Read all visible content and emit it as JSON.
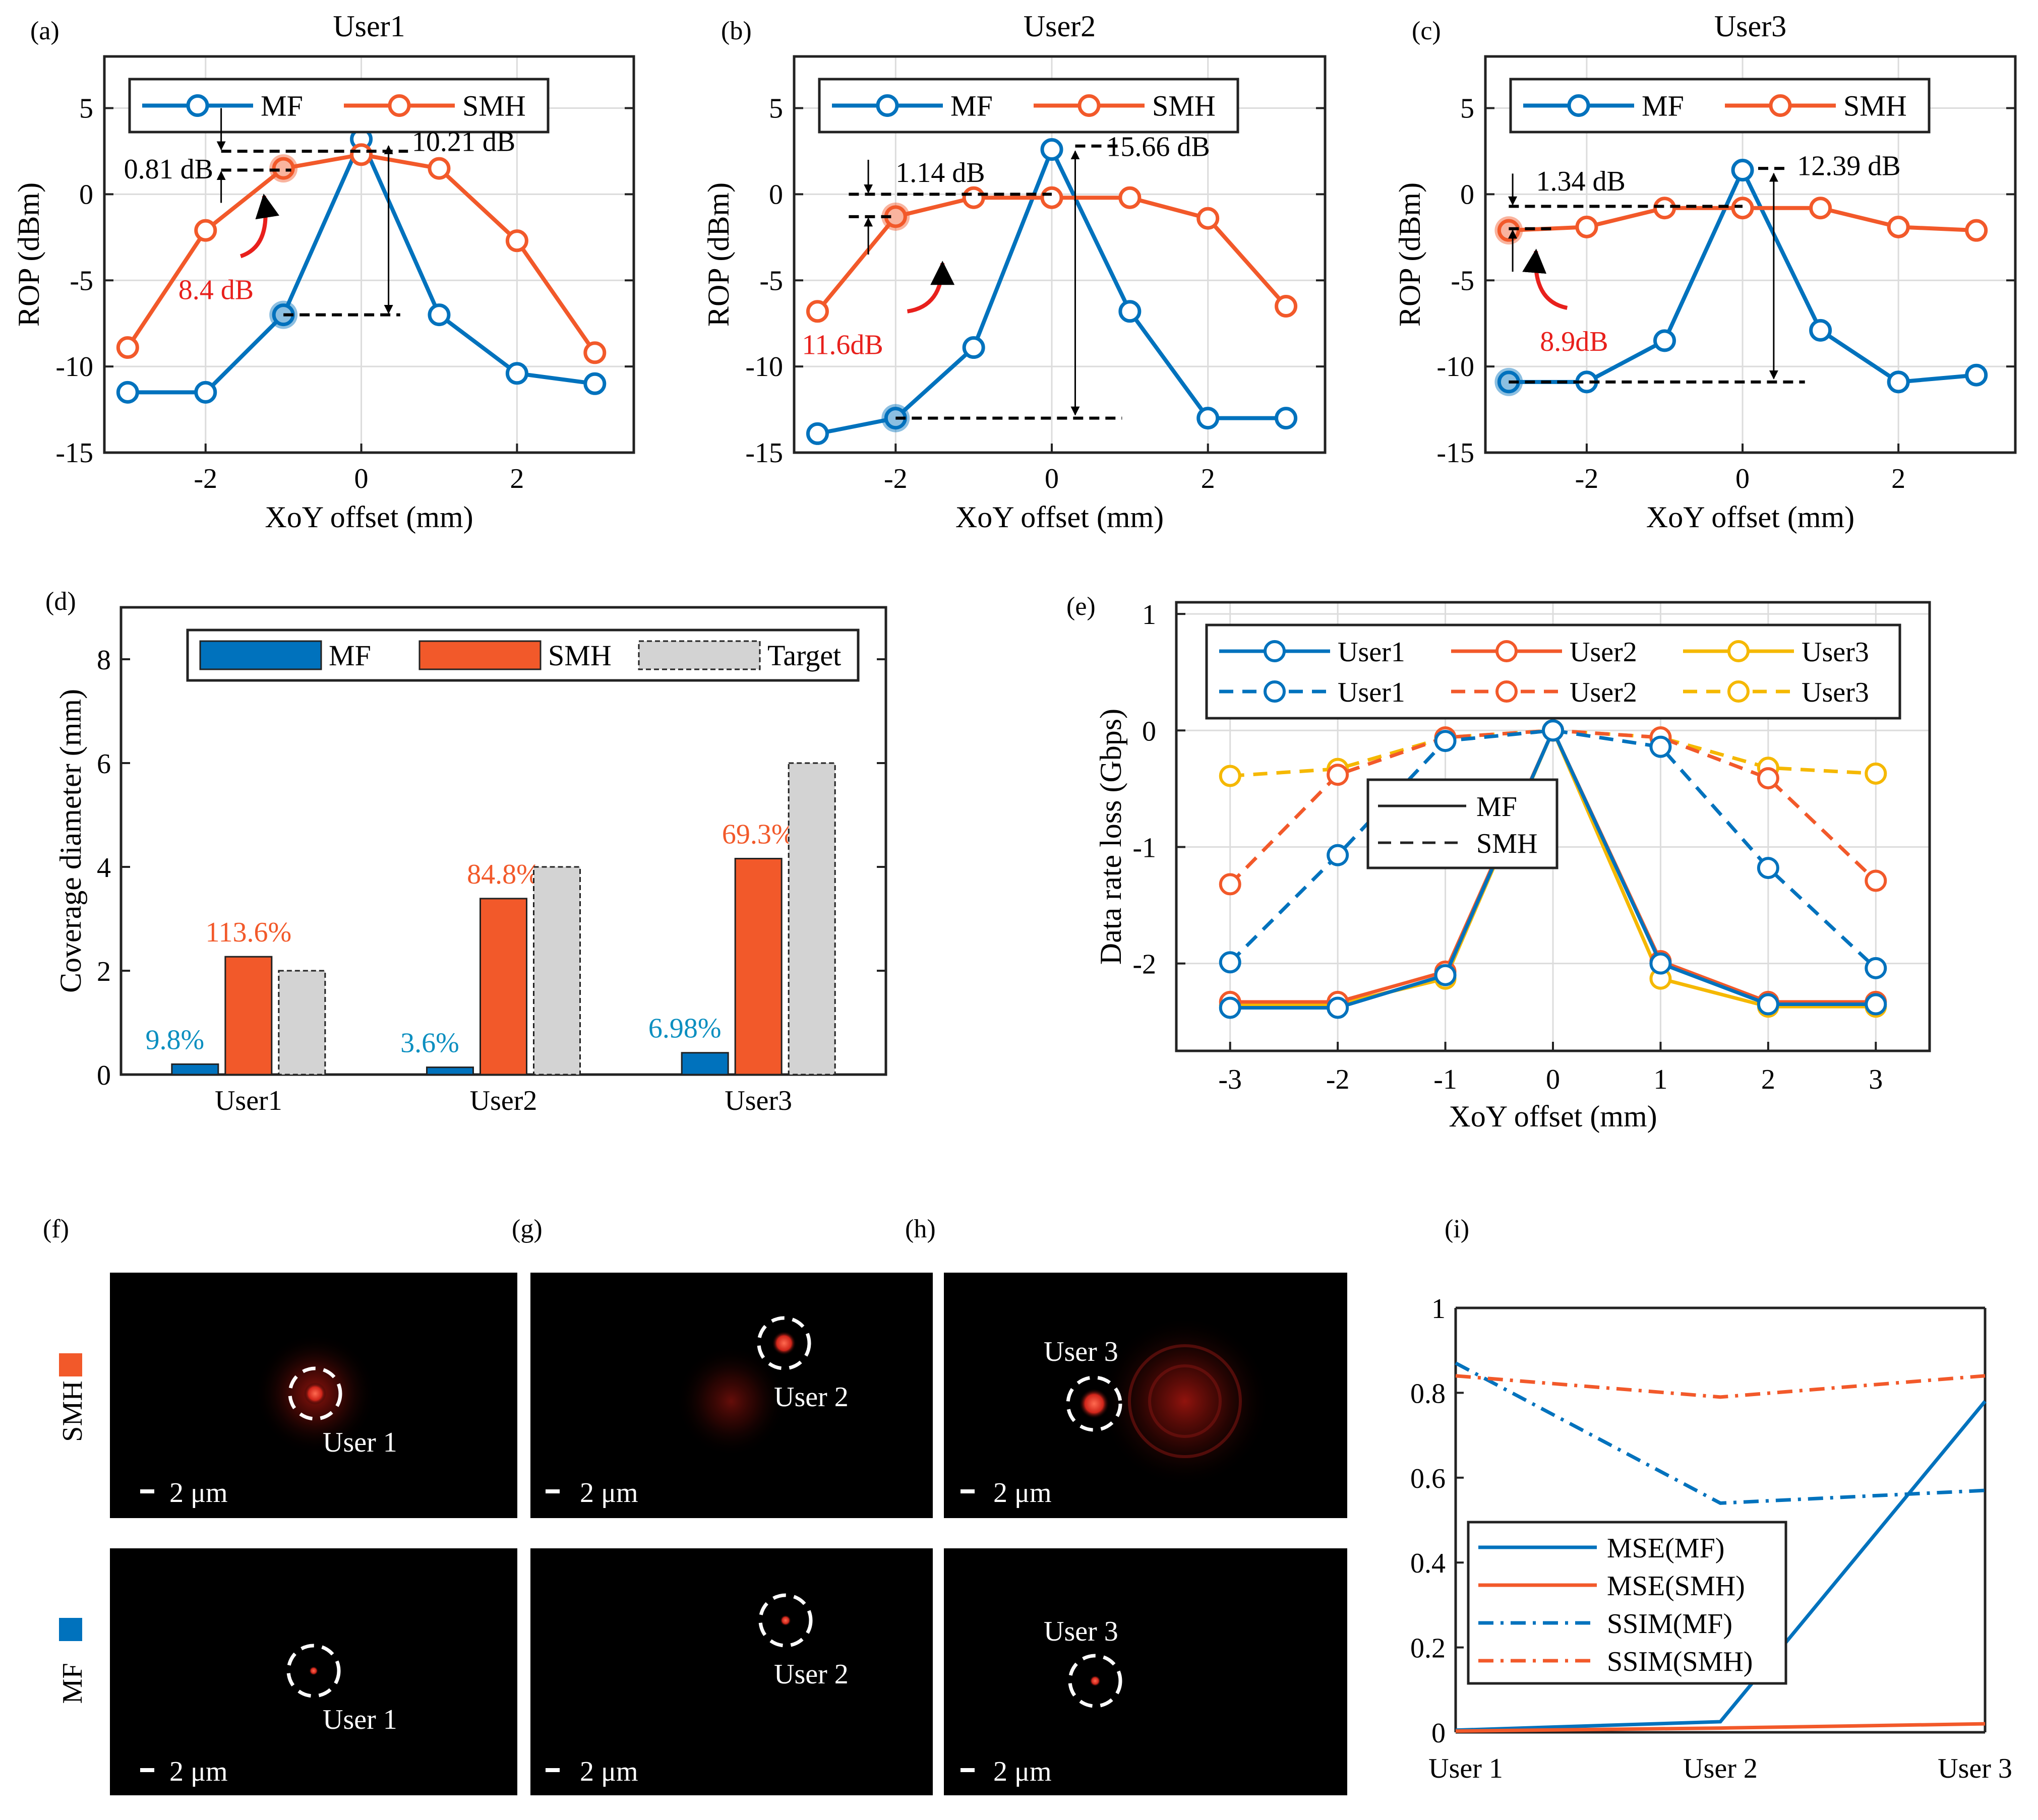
{
  "colors": {
    "mf": "#0072BD",
    "smh": "#F2592A",
    "user3": "#F5B800",
    "target": "#D3D3D3",
    "highlight_red": "#E8201C",
    "mf_pct": "#0B8FC0",
    "smh_pct": "#F2592A"
  },
  "chart_data": [
    {
      "panel": "(a)",
      "type": "line",
      "title": "User1",
      "xlabel": "XoY offset (mm)",
      "ylabel": "ROP (dBm)",
      "xlim": [
        -3.3,
        3.5
      ],
      "ylim": [
        -15,
        8
      ],
      "xticks": [
        -2,
        0,
        2
      ],
      "yticks": [
        -15,
        -10,
        -5,
        0,
        5
      ],
      "ytick_labels": [
        "-15",
        "-10",
        "-5",
        "0",
        "5"
      ],
      "legend": [
        "MF",
        "SMH"
      ],
      "x": [
        -3,
        -2,
        -1,
        0,
        1,
        2,
        3
      ],
      "series": [
        {
          "name": "MF",
          "values": [
            -11.5,
            -11.5,
            -7.0,
            3.2,
            -7.0,
            -10.4,
            -11.0
          ]
        },
        {
          "name": "SMH",
          "values": [
            -8.9,
            -2.1,
            1.5,
            2.3,
            1.5,
            -2.7,
            -9.2
          ]
        }
      ],
      "annotations": [
        {
          "text": "0.81 dB"
        },
        {
          "text": "10.21 dB"
        },
        {
          "text": "8.4 dB"
        }
      ]
    },
    {
      "panel": "(b)",
      "type": "line",
      "title": "User2",
      "xlabel": "XoY offset (mm)",
      "ylabel": "ROP (dBm)",
      "xlim": [
        -3.3,
        3.5
      ],
      "ylim": [
        -15,
        8
      ],
      "xticks": [
        -2,
        0,
        2
      ],
      "yticks": [
        -15,
        -10,
        -5,
        0,
        5
      ],
      "ytick_labels": [
        "-15",
        "-10",
        "-5",
        "0",
        "5"
      ],
      "legend": [
        "MF",
        "SMH"
      ],
      "x": [
        -3,
        -2,
        -1,
        0,
        1,
        2,
        3
      ],
      "series": [
        {
          "name": "MF",
          "values": [
            -13.9,
            -13.0,
            -8.9,
            2.6,
            -6.8,
            -13.0,
            -13.0
          ]
        },
        {
          "name": "SMH",
          "values": [
            -6.8,
            -1.3,
            -0.2,
            -0.2,
            -0.2,
            -1.4,
            -6.5
          ]
        }
      ],
      "annotations": [
        {
          "text": "1.14 dB"
        },
        {
          "text": "15.66 dB"
        },
        {
          "text": "11.6dB"
        }
      ]
    },
    {
      "panel": "(c)",
      "type": "line",
      "title": "User3",
      "xlabel": "XoY offset (mm)",
      "ylabel": "ROP (dBm)",
      "xlim": [
        -3.3,
        3.5
      ],
      "ylim": [
        -15,
        8
      ],
      "xticks": [
        -2,
        0,
        2
      ],
      "yticks": [
        -15,
        -10,
        -5,
        0,
        5
      ],
      "ytick_labels": [
        "-15",
        "-10",
        "-5",
        "0",
        "5"
      ],
      "legend": [
        "MF",
        "SMH"
      ],
      "x": [
        -3,
        -2,
        -1,
        0,
        1,
        2,
        3
      ],
      "series": [
        {
          "name": "MF",
          "values": [
            -10.9,
            -10.9,
            -8.5,
            1.4,
            -7.9,
            -10.9,
            -10.5
          ]
        },
        {
          "name": "SMH",
          "values": [
            -2.1,
            -1.9,
            -0.8,
            -0.8,
            -0.8,
            -1.9,
            -2.1
          ]
        }
      ],
      "annotations": [
        {
          "text": "1.34 dB"
        },
        {
          "text": "12.39 dB"
        },
        {
          "text": "8.9dB"
        }
      ]
    },
    {
      "panel": "(d)",
      "type": "bar",
      "title": "",
      "xlabel": "",
      "ylabel": "Coverage diameter (mm)",
      "ylim": [
        0,
        9
      ],
      "yticks": [
        0,
        2,
        4,
        6,
        8
      ],
      "ytick_labels": [
        "0",
        "2",
        "4",
        "6",
        "8"
      ],
      "categories": [
        "User1",
        "User2",
        "User3"
      ],
      "legend": [
        "MF",
        "SMH",
        "Target"
      ],
      "series": [
        {
          "name": "MF",
          "values": [
            0.2,
            0.14,
            0.42
          ],
          "labels": [
            "9.8%",
            "3.6%",
            "6.98%"
          ]
        },
        {
          "name": "SMH",
          "values": [
            2.27,
            3.39,
            4.16
          ],
          "labels": [
            "113.6%",
            "84.8%",
            "69.3%"
          ]
        },
        {
          "name": "Target",
          "values": [
            2.0,
            4.0,
            6.0
          ]
        }
      ]
    },
    {
      "panel": "(e)",
      "type": "line",
      "title": "",
      "xlabel": "XoY offset (mm)",
      "ylabel": "Data rate loss (Gbps)",
      "xlim": [
        -3.5,
        3.5
      ],
      "ylim": [
        -2.75,
        1.1
      ],
      "xticks": [
        -3,
        -2,
        -1,
        0,
        1,
        2,
        3
      ],
      "xtick_labels": [
        "-3",
        "-2",
        "-1",
        "0",
        "1",
        "2",
        "3"
      ],
      "yticks": [
        -2,
        -1,
        0,
        1
      ],
      "ytick_labels": [
        "-2",
        "-1",
        "0",
        "1"
      ],
      "x": [
        -3,
        -2,
        -1,
        0,
        1,
        2,
        3
      ],
      "legend_main": [
        [
          "User1",
          "User2",
          "User3"
        ],
        [
          "User1",
          "User2",
          "User3"
        ]
      ],
      "legend_style": [
        "MF",
        "SMH"
      ],
      "series": [
        {
          "name": "User1",
          "style": "MF",
          "values": [
            -2.38,
            -2.38,
            -2.1,
            0.0,
            -2.0,
            -2.35,
            -2.35
          ]
        },
        {
          "name": "User2",
          "style": "MF",
          "values": [
            -2.33,
            -2.33,
            -2.07,
            0.0,
            -1.98,
            -2.33,
            -2.33
          ]
        },
        {
          "name": "User3",
          "style": "MF",
          "values": [
            -2.36,
            -2.35,
            -2.13,
            0.0,
            -2.13,
            -2.37,
            -2.37
          ]
        },
        {
          "name": "User1",
          "style": "SMH",
          "values": [
            -1.99,
            -1.07,
            -0.09,
            0.0,
            -0.14,
            -1.18,
            -2.04
          ]
        },
        {
          "name": "User2",
          "style": "SMH",
          "values": [
            -1.32,
            -0.38,
            -0.06,
            0.0,
            -0.06,
            -0.41,
            -1.29
          ]
        },
        {
          "name": "User3",
          "style": "SMH",
          "values": [
            -0.39,
            -0.33,
            -0.06,
            0.0,
            -0.06,
            -0.32,
            -0.37
          ]
        }
      ]
    },
    {
      "panel": "(i)",
      "type": "line",
      "title": "",
      "xlabel": "",
      "ylabel": "",
      "ylim": [
        0,
        1
      ],
      "yticks": [
        0,
        0.2,
        0.4,
        0.6,
        0.8,
        1
      ],
      "ytick_labels": [
        "0",
        "0.2",
        "0.4",
        "0.6",
        "0.8",
        "1"
      ],
      "categories": [
        "User 1",
        "User 2",
        "User 3"
      ],
      "legend": [
        "MSE(MF)",
        "MSE(SMH)",
        "SSIM(MF)",
        "SSIM(SMH)"
      ],
      "series": [
        {
          "name": "MSE(MF)",
          "values": [
            0.005,
            0.025,
            0.78
          ]
        },
        {
          "name": "MSE(SMH)",
          "values": [
            0.003,
            0.01,
            0.02
          ]
        },
        {
          "name": "SSIM(MF)",
          "values": [
            0.87,
            0.54,
            0.57
          ]
        },
        {
          "name": "SSIM(SMH)",
          "values": [
            0.84,
            0.79,
            0.84
          ]
        }
      ]
    }
  ],
  "panel_labels": {
    "a": "(a)",
    "b": "(b)",
    "c": "(c)",
    "d": "(d)",
    "e": "(e)",
    "f": "(f)",
    "g": "(g)",
    "h": "(h)",
    "i": "(i)"
  },
  "images": {
    "row_labels": [
      "SMH",
      "MF"
    ],
    "scale_bar": "2 μm",
    "smh_users": [
      "User 1",
      "User 2",
      "User 3"
    ],
    "mf_users": [
      "User 1",
      "User 2",
      "User 3"
    ]
  }
}
